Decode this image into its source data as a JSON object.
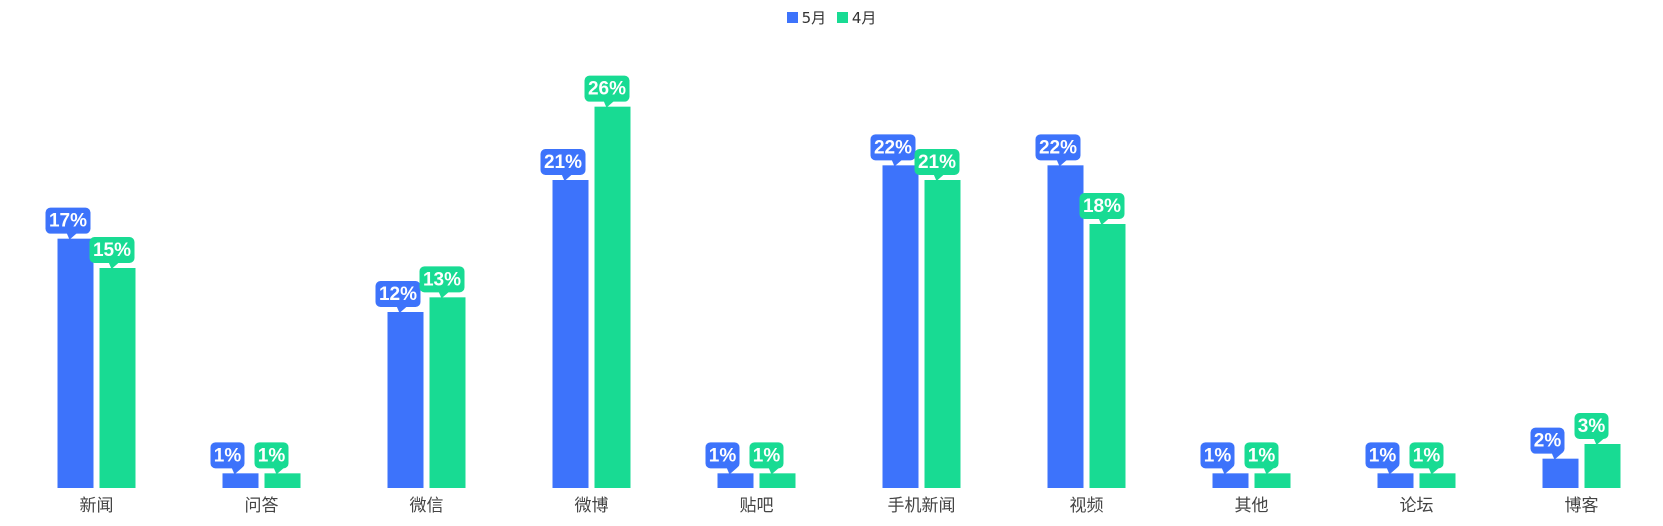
{
  "chart_data": {
    "type": "bar",
    "categories": [
      "新闻",
      "问答",
      "微信",
      "微博",
      "贴吧",
      "手机新闻",
      "视频",
      "其他",
      "论坛",
      "博客"
    ],
    "series": [
      {
        "name": "5月",
        "color": "#3d73fb",
        "values": [
          17,
          1,
          12,
          21,
          1,
          22,
          22,
          1,
          1,
          2
        ]
      },
      {
        "name": "4月",
        "color": "#18db93",
        "values": [
          15,
          1,
          13,
          26,
          1,
          21,
          18,
          1,
          1,
          3
        ]
      }
    ],
    "value_suffix": "%",
    "ylim": [
      0,
      30
    ],
    "grid": false,
    "legend_position": "top-center"
  }
}
